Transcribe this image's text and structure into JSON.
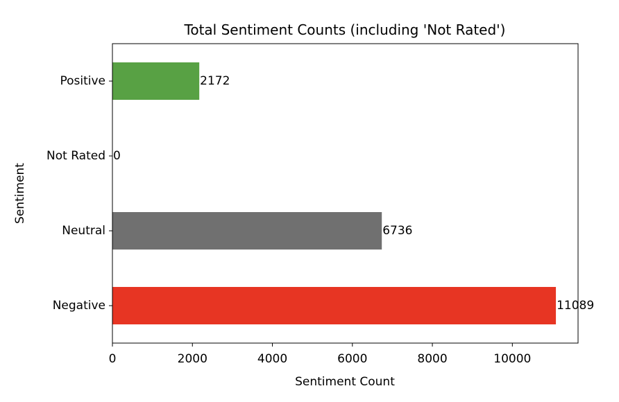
{
  "chart_data": {
    "type": "bar",
    "orientation": "horizontal",
    "title": "Total Sentiment Counts (including 'Not Rated')",
    "xlabel": "Sentiment Count",
    "ylabel": "Sentiment",
    "categories": [
      "Positive",
      "Not Rated",
      "Neutral",
      "Negative"
    ],
    "values": [
      2172,
      0,
      6736,
      11089
    ],
    "data_labels": [
      "2172",
      "0",
      "6736",
      "11089"
    ],
    "colors": [
      "#58a144",
      "#5aa0d5",
      "#707070",
      "#e73523"
    ],
    "x_ticks": [
      0,
      2000,
      4000,
      6000,
      8000,
      10000
    ],
    "x_tick_labels": [
      "0",
      "2000",
      "4000",
      "6000",
      "8000",
      "10000"
    ],
    "xlim": [
      0,
      11643
    ],
    "grid": false,
    "legend": "none"
  }
}
